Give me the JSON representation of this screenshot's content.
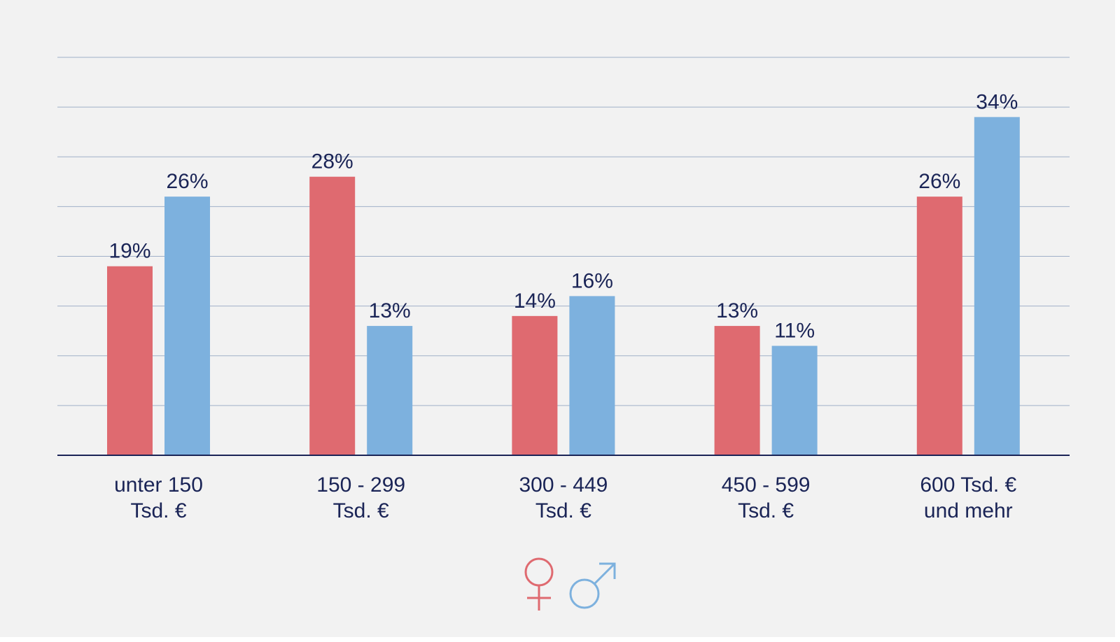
{
  "chart_data": {
    "type": "bar",
    "categories": [
      [
        "unter 150",
        "Tsd. €"
      ],
      [
        "150 - 299",
        "Tsd. €"
      ],
      [
        "300 - 449",
        "Tsd. €"
      ],
      [
        "450 - 599",
        "Tsd. €"
      ],
      [
        "600 Tsd. €",
        "und mehr"
      ]
    ],
    "series": [
      {
        "values": [
          19,
          28,
          14,
          13,
          26
        ],
        "color": "#df6a70",
        "icon": "female-symbol-icon"
      },
      {
        "values": [
          26,
          13,
          16,
          11,
          34
        ],
        "color": "#7db1de",
        "icon": "male-symbol-icon"
      }
    ],
    "value_suffix": "%",
    "ylim": [
      0,
      40
    ],
    "grid": true,
    "gridline_count": 8,
    "legend": "bottom-center",
    "axis_color": "#1a2456",
    "grid_color": "#9fb0c8",
    "label_color": "#1a2456"
  }
}
